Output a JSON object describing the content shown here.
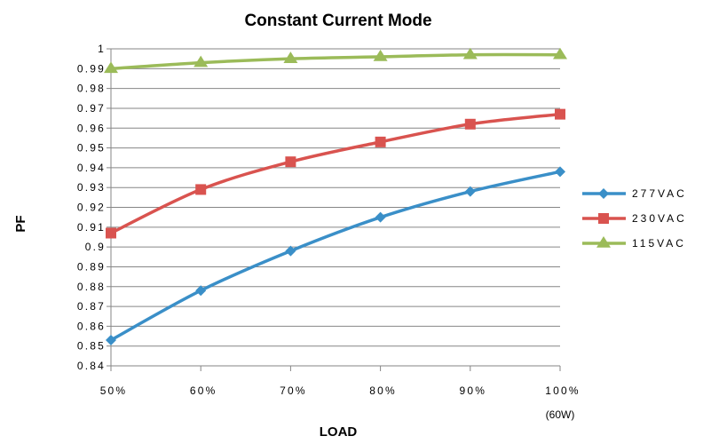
{
  "chart_data": {
    "type": "line",
    "title": "Constant Current Mode",
    "xlabel": "LOAD",
    "ylabel": "PF",
    "categories": [
      "50%",
      "60%",
      "70%",
      "80%",
      "90%",
      "100%"
    ],
    "category_sublabels": [
      "",
      "",
      "",
      "",
      "",
      "(60W)"
    ],
    "y_ticks": [
      "0.84",
      "0.85",
      "0.86",
      "0.87",
      "0.88",
      "0.89",
      "0.9",
      "0.91",
      "0.92",
      "0.93",
      "0.94",
      "0.95",
      "0.96",
      "0.97",
      "0.98",
      "0.99",
      "1"
    ],
    "ylim": [
      0.84,
      1.0
    ],
    "grid": true,
    "legend_position": "right",
    "series": [
      {
        "name": "277VAC",
        "color": "#3a8fc8",
        "marker": "diamond",
        "values": [
          0.853,
          0.878,
          0.898,
          0.915,
          0.928,
          0.938
        ]
      },
      {
        "name": "230VAC",
        "color": "#d9534f",
        "marker": "square",
        "values": [
          0.907,
          0.929,
          0.943,
          0.953,
          0.962,
          0.967
        ]
      },
      {
        "name": "115VAC",
        "color": "#9bbb59",
        "marker": "triangle",
        "values": [
          0.99,
          0.993,
          0.995,
          0.996,
          0.997,
          0.997
        ]
      }
    ]
  }
}
